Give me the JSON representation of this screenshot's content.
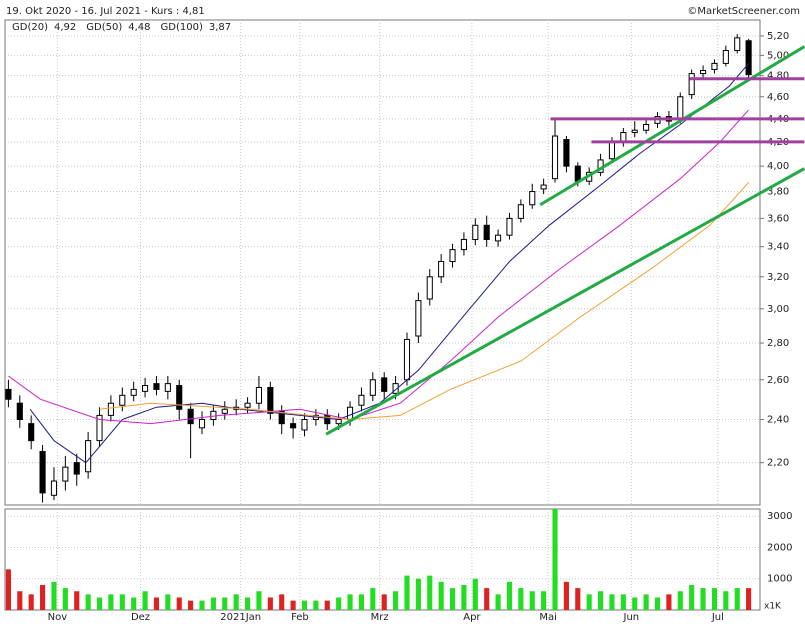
{
  "chart_data": {
    "type": "candlestick",
    "title": "19. Okt 2020 - 16. Jul 2021 - Kurs : 4,81",
    "source": "©MarketScreener.com",
    "log_scale": true,
    "grid": true,
    "xlim": [
      -0.3,
      66
    ],
    "xticks": [
      {
        "value": 4.3,
        "label": "Nov"
      },
      {
        "value": 11.6,
        "label": "Dez"
      },
      {
        "value": 20.4,
        "label": "2021Jan"
      },
      {
        "value": 25.6,
        "label": "Feb"
      },
      {
        "value": 32.6,
        "label": "Mrz"
      },
      {
        "value": 40.7,
        "label": "Apr"
      },
      {
        "value": 47.4,
        "label": "Mai"
      },
      {
        "value": 54.7,
        "label": "Jun"
      },
      {
        "value": 62.3,
        "label": "Jul"
      }
    ],
    "ylim": [
      2.02,
      5.37
    ],
    "yticks": [
      {
        "value": 2.2,
        "label": "2,20"
      },
      {
        "value": 2.4,
        "label": "2,40"
      },
      {
        "value": 2.6,
        "label": "2,60"
      },
      {
        "value": 2.8,
        "label": "2,80"
      },
      {
        "value": 3.0,
        "label": "3,00"
      },
      {
        "value": 3.2,
        "label": "3,20"
      },
      {
        "value": 3.4,
        "label": "3,40"
      },
      {
        "value": 3.6,
        "label": "3,60"
      },
      {
        "value": 3.8,
        "label": "3,80"
      },
      {
        "value": 4.0,
        "label": "4,00"
      },
      {
        "value": 4.2,
        "label": "4,20"
      },
      {
        "value": 4.4,
        "label": "4,40"
      },
      {
        "value": 4.6,
        "label": "4,60"
      },
      {
        "value": 4.8,
        "label": "4,80"
      },
      {
        "value": 5.0,
        "label": "5,00"
      },
      {
        "value": 5.2,
        "label": "5,20"
      }
    ],
    "up_color": "#ffffff",
    "down_color": "#000000",
    "open": [
      2.55,
      2.48,
      2.38,
      2.25,
      2.06,
      2.12,
      2.2,
      2.16,
      2.3,
      2.42,
      2.47,
      2.52,
      2.54,
      2.58,
      2.54,
      2.57,
      2.45,
      2.36,
      2.4,
      2.43,
      2.45,
      2.46,
      2.48,
      2.56,
      2.44,
      2.38,
      2.35,
      2.4,
      2.42,
      2.38,
      2.4,
      2.47,
      2.52,
      2.61,
      2.53,
      2.6,
      2.84,
      3.06,
      3.2,
      3.3,
      3.38,
      3.45,
      3.55,
      3.44,
      3.48,
      3.6,
      3.7,
      3.82,
      3.9,
      4.22,
      4.0,
      3.88,
      3.95,
      4.06,
      4.2,
      4.28,
      4.3,
      4.36,
      4.42,
      4.4,
      4.62,
      4.82,
      4.86,
      4.92,
      5.05,
      5.15
    ],
    "high": [
      2.6,
      2.52,
      2.42,
      2.28,
      2.18,
      2.23,
      2.24,
      2.34,
      2.46,
      2.52,
      2.56,
      2.59,
      2.61,
      2.62,
      2.62,
      2.6,
      2.48,
      2.44,
      2.47,
      2.49,
      2.5,
      2.51,
      2.62,
      2.59,
      2.47,
      2.41,
      2.43,
      2.45,
      2.45,
      2.43,
      2.49,
      2.56,
      2.64,
      2.64,
      2.62,
      2.86,
      3.1,
      3.25,
      3.35,
      3.42,
      3.5,
      3.6,
      3.62,
      3.52,
      3.64,
      3.74,
      3.86,
      3.9,
      4.4,
      4.25,
      4.03,
      3.99,
      4.1,
      4.24,
      4.32,
      4.38,
      4.4,
      4.46,
      4.47,
      4.64,
      4.86,
      4.9,
      4.96,
      5.1,
      5.22,
      5.17
    ],
    "low": [
      2.46,
      2.36,
      2.26,
      2.03,
      2.04,
      2.08,
      2.1,
      2.13,
      2.27,
      2.39,
      2.44,
      2.49,
      2.51,
      2.52,
      2.5,
      2.4,
      2.22,
      2.33,
      2.37,
      2.4,
      2.42,
      2.43,
      2.45,
      2.4,
      2.33,
      2.31,
      2.32,
      2.37,
      2.35,
      2.35,
      2.37,
      2.44,
      2.49,
      2.5,
      2.5,
      2.57,
      2.8,
      3.02,
      3.16,
      3.26,
      3.34,
      3.41,
      3.4,
      3.4,
      3.45,
      3.57,
      3.67,
      3.78,
      3.87,
      3.95,
      3.84,
      3.85,
      3.92,
      4.03,
      4.16,
      4.24,
      4.27,
      4.32,
      4.34,
      4.36,
      4.58,
      4.78,
      4.82,
      4.89,
      5.02,
      4.76
    ],
    "close": [
      2.5,
      2.4,
      2.3,
      2.07,
      2.12,
      2.18,
      2.15,
      2.3,
      2.42,
      2.48,
      2.52,
      2.55,
      2.57,
      2.55,
      2.58,
      2.45,
      2.38,
      2.4,
      2.44,
      2.45,
      2.46,
      2.48,
      2.56,
      2.43,
      2.38,
      2.36,
      2.4,
      2.42,
      2.38,
      2.4,
      2.46,
      2.52,
      2.6,
      2.54,
      2.58,
      2.82,
      3.05,
      3.2,
      3.3,
      3.38,
      3.45,
      3.55,
      3.45,
      3.48,
      3.6,
      3.7,
      3.8,
      3.85,
      4.25,
      4.0,
      3.88,
      3.95,
      4.05,
      4.2,
      4.28,
      4.3,
      4.35,
      4.42,
      4.38,
      4.6,
      4.82,
      4.85,
      4.92,
      5.05,
      5.18,
      4.81
    ],
    "moving_averages": [
      {
        "name": "GD(20)",
        "last_label": "4,92",
        "color": "#1a1a8c",
        "x": [
          1.9,
          4,
          6.8,
          10,
          13,
          17,
          20.4,
          25.6,
          29,
          32.6,
          36,
          40.5,
          44,
          47.5,
          52,
          55.4,
          59,
          63.3,
          65
        ],
        "values": [
          2.45,
          2.3,
          2.2,
          2.4,
          2.46,
          2.48,
          2.45,
          2.42,
          2.4,
          2.48,
          2.65,
          3.0,
          3.3,
          3.55,
          3.85,
          4.1,
          4.35,
          4.7,
          4.92
        ]
      },
      {
        "name": "GD(50)",
        "last_label": "4,48",
        "color": "#cc22cc",
        "x": [
          0,
          2.8,
          8,
          12.5,
          18.6,
          25.6,
          30,
          34.4,
          38.8,
          43,
          48.4,
          53.7,
          59,
          62.5,
          65
        ],
        "values": [
          2.62,
          2.5,
          2.4,
          2.38,
          2.42,
          2.45,
          2.4,
          2.48,
          2.7,
          2.95,
          3.25,
          3.55,
          3.9,
          4.2,
          4.48
        ]
      },
      {
        "name": "GD(100)",
        "last_label": "3,87",
        "color": "#f0a030",
        "x": [
          8,
          12.5,
          21.2,
          30,
          34.4,
          38.8,
          45,
          50.2,
          56.4,
          61.6,
          65
        ],
        "values": [
          2.45,
          2.48,
          2.45,
          2.4,
          2.42,
          2.55,
          2.7,
          2.95,
          3.25,
          3.55,
          3.87
        ]
      }
    ],
    "trendlines": [
      {
        "color": "#22aa44",
        "x": [
          27.9,
          69.9
        ],
        "y": [
          2.33,
          3.98
        ]
      },
      {
        "color": "#22aa44",
        "x": [
          46.7,
          69.9
        ],
        "y": [
          3.7,
          5.09
        ]
      },
      {
        "color": "#a040a0",
        "x": [
          47.6,
          69.9
        ],
        "y": [
          4.4,
          4.4
        ]
      },
      {
        "color": "#a040a0",
        "x": [
          51.2,
          69.9
        ],
        "y": [
          4.2,
          4.2
        ]
      },
      {
        "color": "#a040a0",
        "x": [
          59.8,
          69.9
        ],
        "y": [
          4.77,
          4.77
        ]
      }
    ],
    "volume": {
      "unit_label": "x1K",
      "up_color": "#22dd22",
      "down_color": "#dd2222",
      "ylim": [
        0,
        3230
      ],
      "yticks": [
        1000,
        2000,
        3000
      ],
      "values": [
        1300,
        600,
        500,
        800,
        900,
        700,
        600,
        500,
        400,
        500,
        500,
        400,
        600,
        400,
        500,
        400,
        300,
        300,
        400,
        400,
        500,
        400,
        600,
        400,
        500,
        300,
        300,
        300,
        300,
        400,
        500,
        500,
        700,
        500,
        600,
        1100,
        1000,
        1100,
        900,
        700,
        800,
        1000,
        700,
        500,
        900,
        700,
        600,
        600,
        3230,
        900,
        700,
        500,
        600,
        500,
        500,
        400,
        500,
        400,
        500,
        600,
        800,
        700,
        700,
        600,
        700,
        700
      ]
    }
  }
}
